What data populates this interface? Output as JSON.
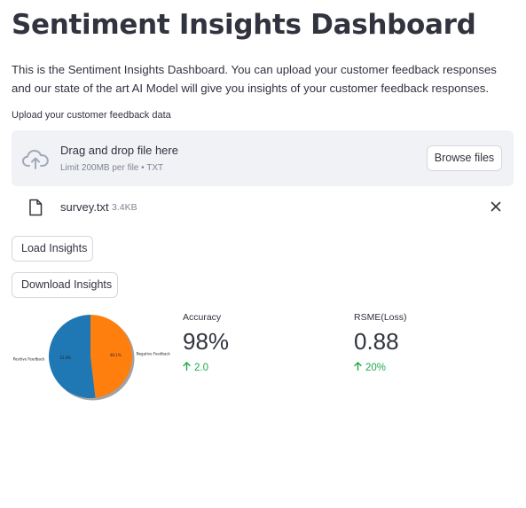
{
  "header": {
    "title": "Sentiment Insights Dashboard",
    "description": "This is the Sentiment Insights Dashboard. You can upload your customer feedback responses and our state of the art AI Model will give you insights of your customer feedback responses."
  },
  "uploader": {
    "label": "Upload your customer feedback data",
    "drop_title": "Drag and drop file here",
    "limit_text": "Limit 200MB per file • TXT",
    "browse_label": "Browse files",
    "icon": "cloud-upload-icon"
  },
  "uploaded_file": {
    "name": "survey.txt",
    "size": "3.4KB",
    "icon": "file-icon",
    "remove_icon": "close-icon"
  },
  "actions": {
    "load_label": "Load Insights",
    "download_label": "Download Insights"
  },
  "chart_data": {
    "type": "pie",
    "slices": [
      {
        "label": "Positive Feedback",
        "value": 51.9,
        "value_label": "51.9%",
        "color": "#1f77b4"
      },
      {
        "label": "Negative Feedback",
        "value": 48.1,
        "value_label": "48.1%",
        "color": "#ff7f0e"
      }
    ]
  },
  "metrics": {
    "accuracy": {
      "label": "Accuracy",
      "value": "98%",
      "delta": "2.0",
      "delta_direction": "up"
    },
    "loss": {
      "label": "RSME(Loss)",
      "value": "0.88",
      "delta": "20%",
      "delta_direction": "up"
    }
  },
  "colors": {
    "text": "#31333f",
    "muted": "#808495",
    "dropzone_bg": "#f0f2f6",
    "delta_positive": "#21a84a"
  }
}
